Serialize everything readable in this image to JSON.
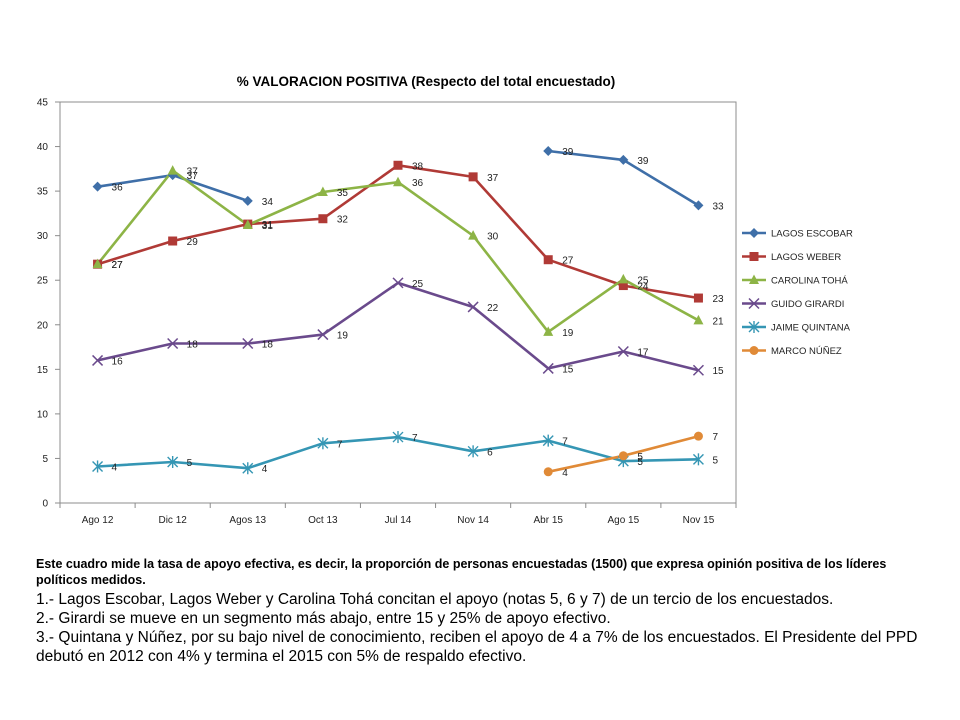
{
  "chart_data": {
    "type": "line",
    "title": "% VALORACION POSITIVA (Respecto del total encuestado)",
    "xlabel": "",
    "ylabel": "",
    "categories": [
      "Ago 12",
      "Dic 12",
      "Agos 13",
      "Oct 13",
      "Jul 14",
      "Nov 14",
      "Abr 15",
      "Ago 15",
      "Nov 15"
    ],
    "ylim": [
      0,
      45
    ],
    "yticks": [
      0,
      5,
      10,
      15,
      20,
      25,
      30,
      35,
      40,
      45
    ],
    "grid": false,
    "legend_position": "right",
    "series": [
      {
        "name": "LAGOS ESCOBAR",
        "color": "#3f6fa8",
        "marker": "diamond",
        "values": [
          35.5,
          36.8,
          33.9,
          null,
          null,
          null,
          39.5,
          38.5,
          33.4
        ],
        "labels": [
          "36",
          "37",
          "34",
          null,
          null,
          null,
          "39",
          "39",
          "33"
        ]
      },
      {
        "name": "LAGOS WEBER",
        "color": "#b03a36",
        "marker": "square",
        "values": [
          26.8,
          29.4,
          31.3,
          31.9,
          37.9,
          36.6,
          27.3,
          24.4,
          23.0
        ],
        "labels": [
          "27",
          "29",
          "31",
          "32",
          "38",
          "37",
          "27",
          "24",
          "23"
        ]
      },
      {
        "name": "CAROLINA TOHÁ",
        "color": "#8db446",
        "marker": "triangle",
        "values": [
          26.8,
          37.3,
          31.2,
          34.9,
          36.0,
          30.0,
          19.2,
          25.1,
          20.5
        ],
        "labels": [
          "27",
          "37",
          "31",
          "35",
          "36",
          "30",
          "19",
          "25",
          "21"
        ]
      },
      {
        "name": "GUIDO GIRARDI",
        "color": "#6a4a8c",
        "marker": "x",
        "values": [
          16.0,
          17.9,
          17.9,
          18.9,
          24.7,
          22.0,
          15.1,
          17.0,
          14.9
        ],
        "labels": [
          "16",
          "18",
          "18",
          "19",
          "25",
          "22",
          "15",
          "17",
          "15"
        ]
      },
      {
        "name": "JAIME QUINTANA",
        "color": "#3596b4",
        "marker": "star",
        "values": [
          4.1,
          4.6,
          3.9,
          6.7,
          7.4,
          5.8,
          7.0,
          4.7,
          4.9
        ],
        "labels": [
          "4",
          "5",
          "4",
          "7",
          "7",
          "6",
          "7",
          "5",
          "5"
        ]
      },
      {
        "name": "MARCO NÚÑEZ",
        "color": "#e08a37",
        "marker": "circle",
        "values": [
          null,
          null,
          null,
          null,
          null,
          null,
          3.5,
          5.3,
          7.5
        ],
        "labels": [
          null,
          null,
          null,
          null,
          null,
          null,
          "4",
          "5",
          "7"
        ]
      }
    ]
  },
  "notes": {
    "lead": "Este cuadro mide la tasa de apoyo efectiva, es decir, la proporción de personas encuestadas (1500) que expresa opinión positiva de los líderes políticos medidos.",
    "points": [
      "1.- Lagos Escobar, Lagos Weber y Carolina Tohá concitan el apoyo (notas 5, 6 y 7) de un tercio de los encuestados.",
      "2.- Girardi se mueve en un segmento más abajo, entre 15 y 25% de apoyo efectivo.",
      "3.- Quintana y Núñez, por su bajo nivel de conocimiento, reciben el apoyo de 4 a 7% de los encuestados. El Presidente del PPD debutó en 2012 con 4% y termina el 2015 con 5% de respaldo efectivo."
    ]
  }
}
